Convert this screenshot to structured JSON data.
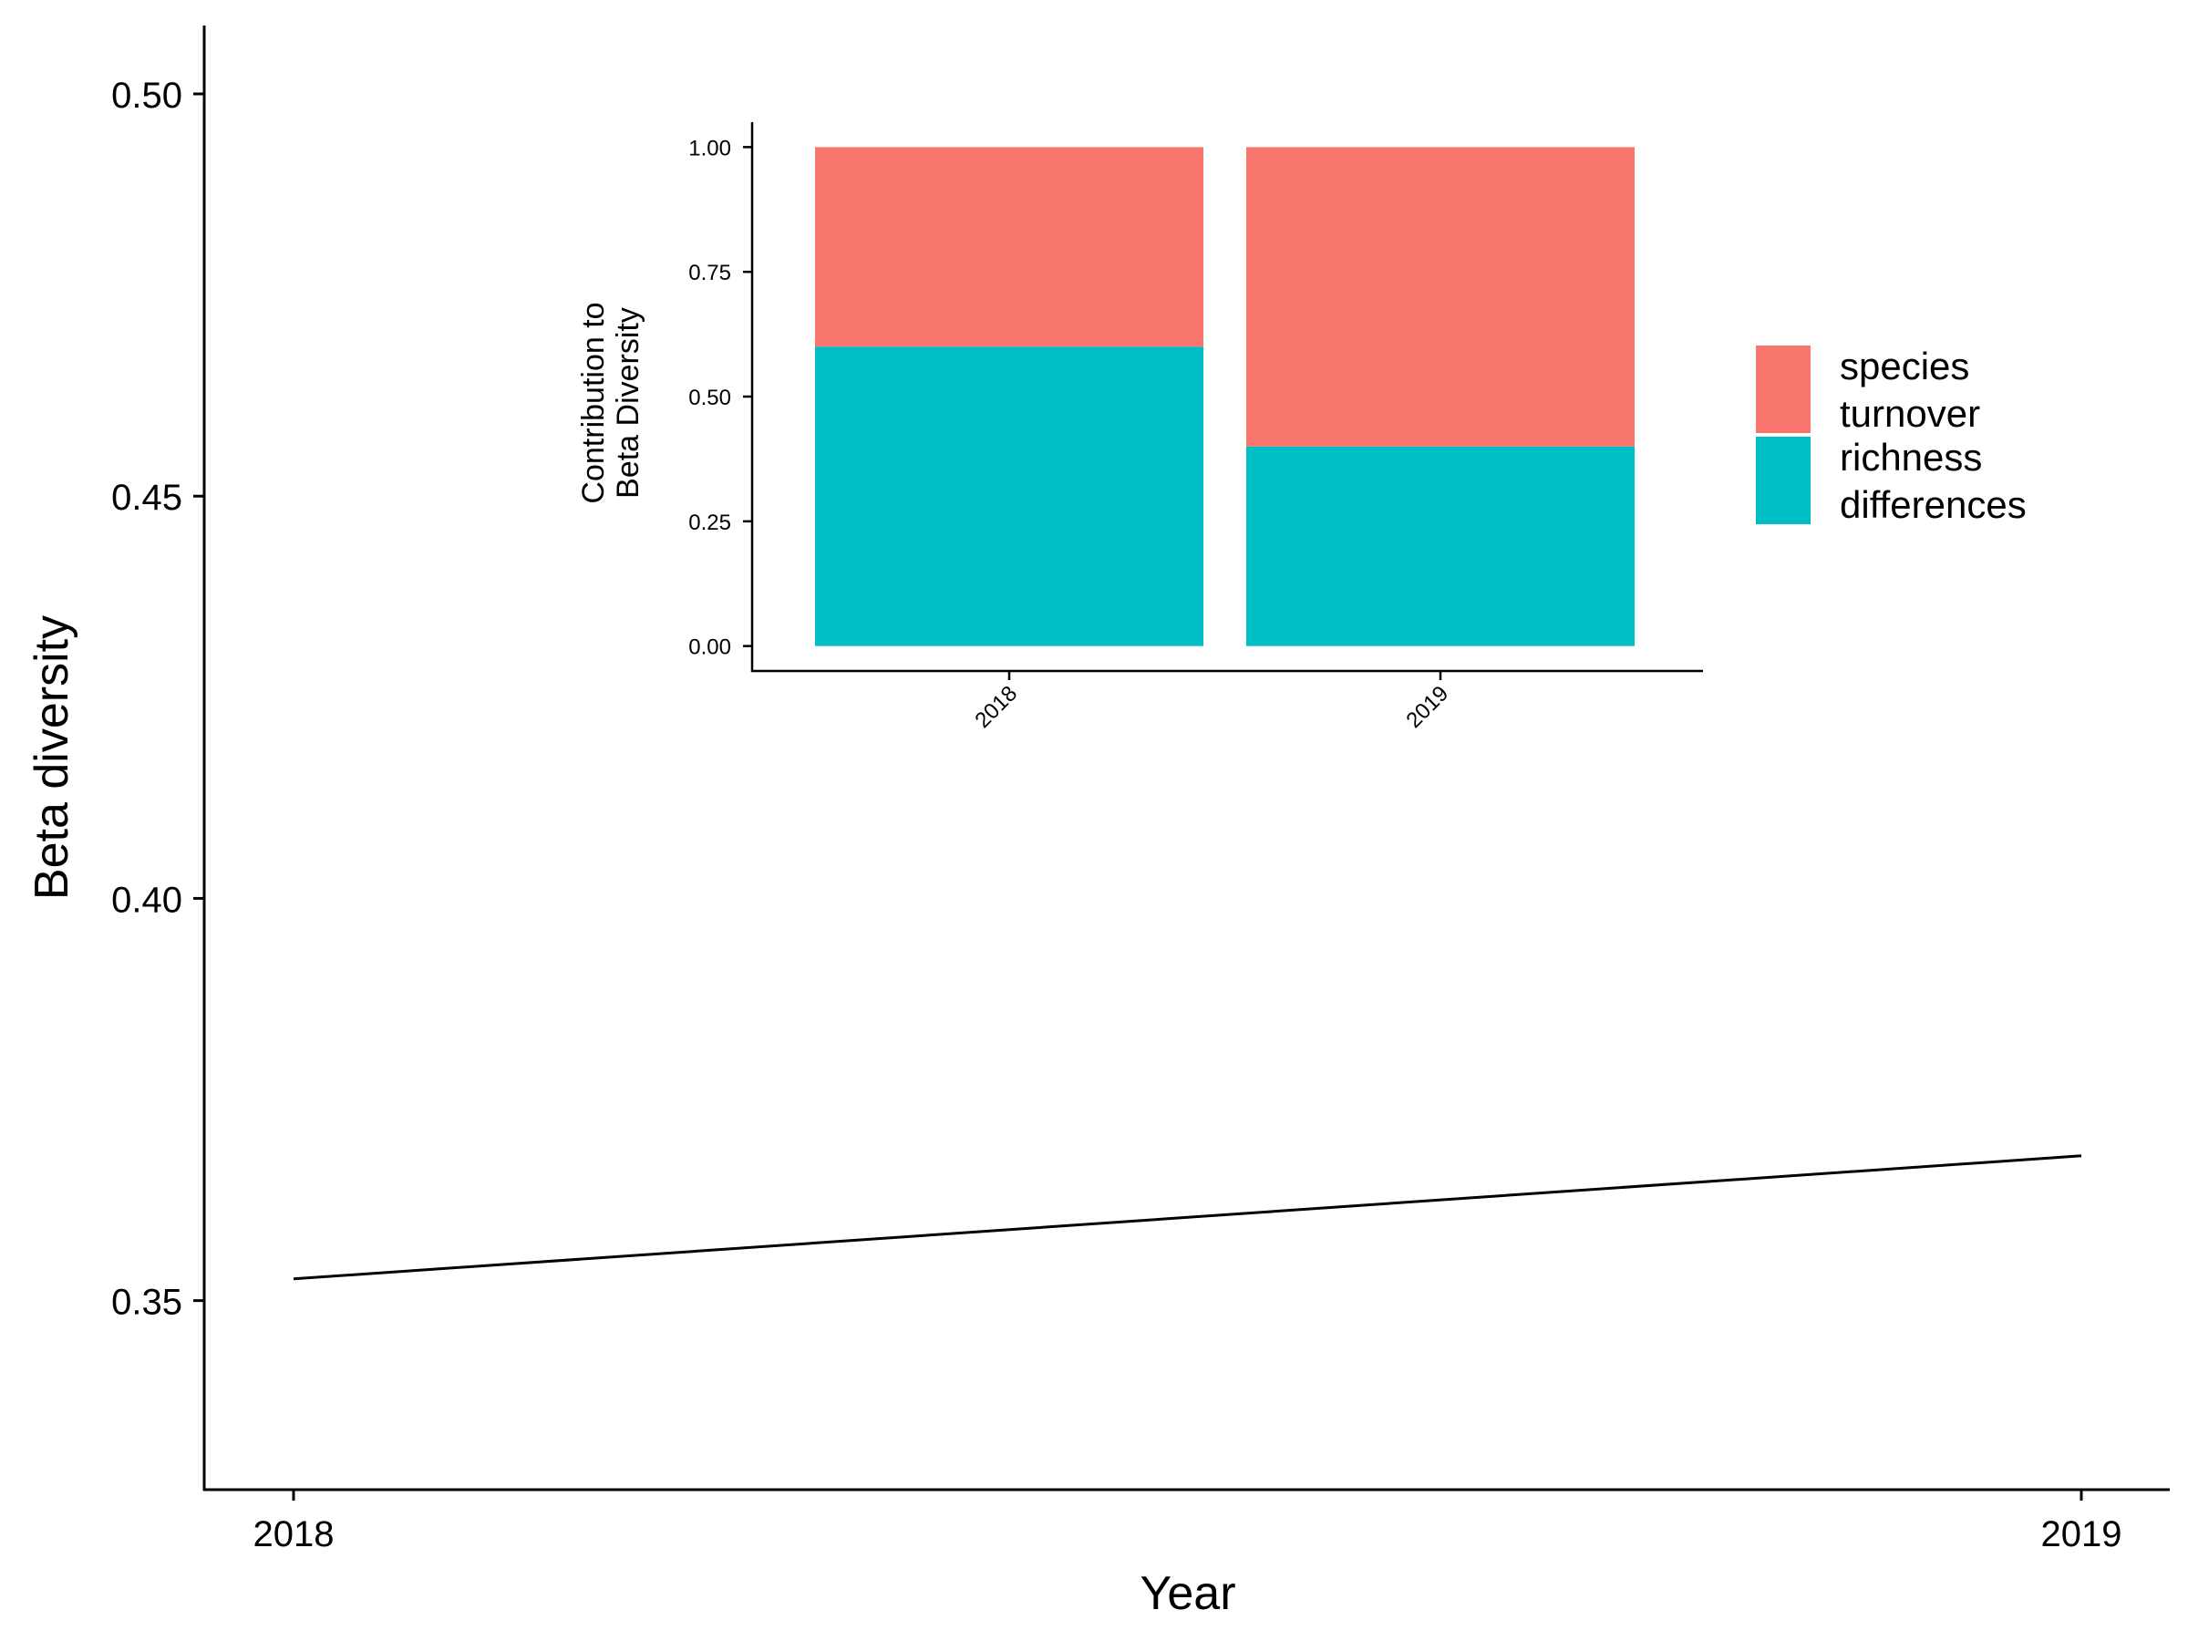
{
  "chart_data": [
    {
      "type": "line",
      "xlabel": "Year",
      "ylabel": "Beta diversity",
      "categories": [
        "2018",
        "2019"
      ],
      "x": [
        2018,
        2019
      ],
      "series": [
        {
          "values": [
            0.3527,
            0.368
          ],
          "color": "#000000"
        }
      ],
      "ylim": [
        0.3265,
        0.5085
      ],
      "yticks": [
        0.35,
        0.4,
        0.45,
        0.5
      ],
      "ytick_labels": [
        "0.35",
        "0.40",
        "0.45",
        "0.50"
      ],
      "grid": false,
      "legend": "none"
    },
    {
      "type": "bar",
      "stacked": true,
      "xlabel": "",
      "ylabel_lines": [
        "Contribution to",
        "Beta Diversity"
      ],
      "categories": [
        "2018",
        "2019"
      ],
      "series": [
        {
          "name": "richness differences",
          "name_lines": [
            "richness",
            "differences"
          ],
          "values": [
            0.6,
            0.4
          ],
          "color": "#00BFC4"
        },
        {
          "name": "species turnover",
          "name_lines": [
            "species",
            "turnover"
          ],
          "values": [
            0.4,
            0.6
          ],
          "color": "#F8766D"
        }
      ],
      "ylim": [
        -0.05,
        1.05
      ],
      "yticks": [
        0,
        0.25,
        0.5,
        0.75,
        1.0
      ],
      "ytick_labels": [
        "0.00",
        "0.25",
        "0.50",
        "0.75",
        "1.00"
      ],
      "grid": false,
      "legend": "right"
    }
  ]
}
